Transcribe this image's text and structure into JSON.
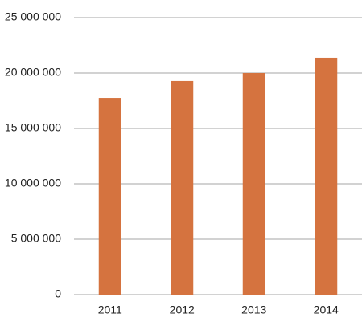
{
  "chart_data": {
    "type": "bar",
    "categories": [
      "2011",
      "2012",
      "2013",
      "2014"
    ],
    "values": [
      17750000,
      19280000,
      20000000,
      21380000
    ],
    "color": "#d5733f",
    "ylim": [
      0,
      25000000
    ],
    "yticks": [
      0,
      {
        "value": 5000000,
        "label": "5 000 000"
      },
      {
        "value": 10000000,
        "label": "10 000 000"
      },
      {
        "value": 15000000,
        "label": "15 000 000"
      },
      {
        "value": 20000000,
        "label": "20 000 000"
      },
      {
        "value": 25000000,
        "label": "25 000 000"
      }
    ],
    "grid": true
  }
}
